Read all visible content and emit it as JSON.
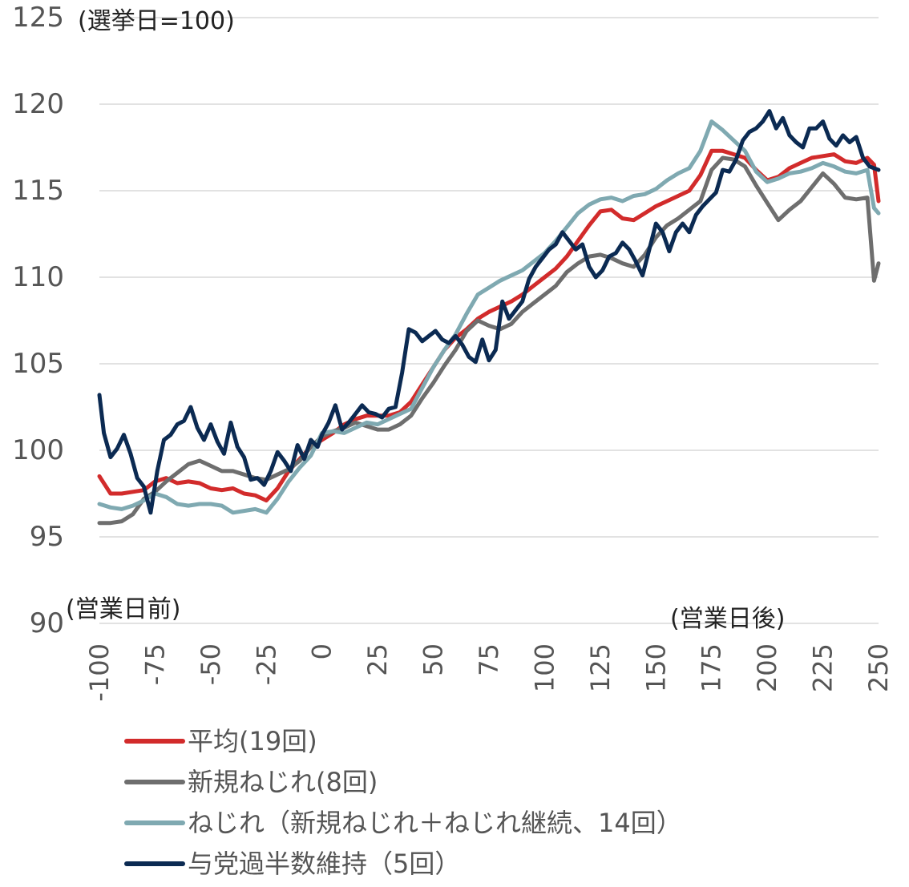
{
  "chart_data": {
    "type": "line",
    "title": "",
    "unit_note": "(選挙日=100)",
    "left_note": "(営業日前)",
    "right_note": "(営業日後)",
    "xlabel": "",
    "ylabel": "",
    "xlim": [
      -100,
      250
    ],
    "ylim": [
      90,
      125
    ],
    "yticks": [
      90,
      95,
      100,
      105,
      110,
      115,
      120,
      125
    ],
    "xticks": [
      -100,
      -75,
      -50,
      -25,
      0,
      25,
      50,
      75,
      100,
      125,
      150,
      175,
      200,
      225,
      250
    ],
    "grid": "horizontal",
    "legend_position": "bottom",
    "series": [
      {
        "name": "平均(19回)",
        "color": "#d22b2b",
        "x": [
          -100,
          -95,
          -90,
          -85,
          -80,
          -75,
          -70,
          -65,
          -60,
          -55,
          -50,
          -45,
          -40,
          -35,
          -30,
          -25,
          -20,
          -15,
          -10,
          -5,
          0,
          5,
          10,
          15,
          20,
          25,
          30,
          35,
          40,
          45,
          50,
          55,
          60,
          65,
          70,
          75,
          80,
          85,
          90,
          95,
          100,
          105,
          110,
          115,
          120,
          125,
          130,
          135,
          140,
          145,
          150,
          155,
          160,
          165,
          170,
          175,
          180,
          185,
          190,
          195,
          200,
          205,
          210,
          215,
          220,
          225,
          230,
          235,
          240,
          245,
          248,
          250
        ],
        "values": [
          98.5,
          97.5,
          97.5,
          97.6,
          97.7,
          98.2,
          98.4,
          98.1,
          98.2,
          98.1,
          97.8,
          97.7,
          97.8,
          97.5,
          97.4,
          97.1,
          97.8,
          98.8,
          99.5,
          100.2,
          100.6,
          101.0,
          101.5,
          101.8,
          102.0,
          102.0,
          102.0,
          102.2,
          102.8,
          103.8,
          104.8,
          105.8,
          106.5,
          107.0,
          107.6,
          108.0,
          108.3,
          108.6,
          109.0,
          109.5,
          110.0,
          110.5,
          111.2,
          112.1,
          113.0,
          113.8,
          113.9,
          113.4,
          113.3,
          113.7,
          114.1,
          114.4,
          114.7,
          115.0,
          115.9,
          117.3,
          117.3,
          117.1,
          116.9,
          116.2,
          115.6,
          115.8,
          116.3,
          116.6,
          116.9,
          117.0,
          117.1,
          116.7,
          116.6,
          116.9,
          116.5,
          114.4
        ]
      },
      {
        "name": "新規ねじれ(8回)",
        "color": "#6e6e6e",
        "x": [
          -100,
          -95,
          -90,
          -85,
          -80,
          -75,
          -70,
          -65,
          -60,
          -55,
          -50,
          -45,
          -40,
          -35,
          -30,
          -25,
          -20,
          -15,
          -10,
          -5,
          0,
          5,
          10,
          15,
          20,
          25,
          30,
          35,
          40,
          45,
          50,
          55,
          60,
          65,
          70,
          75,
          80,
          85,
          90,
          95,
          100,
          105,
          110,
          115,
          120,
          125,
          130,
          135,
          140,
          145,
          150,
          155,
          160,
          165,
          170,
          175,
          180,
          185,
          190,
          195,
          200,
          205,
          210,
          215,
          220,
          225,
          230,
          235,
          240,
          245,
          248,
          250
        ],
        "values": [
          95.8,
          95.8,
          95.9,
          96.3,
          97.2,
          97.6,
          98.2,
          98.7,
          99.2,
          99.4,
          99.1,
          98.8,
          98.8,
          98.6,
          98.4,
          98.3,
          98.6,
          98.9,
          99.4,
          100.2,
          100.8,
          101.1,
          101.3,
          101.6,
          101.4,
          101.2,
          101.2,
          101.5,
          102.0,
          103.0,
          103.9,
          104.9,
          105.8,
          106.9,
          107.5,
          107.2,
          107.0,
          107.3,
          108.0,
          108.5,
          109.0,
          109.5,
          110.3,
          110.8,
          111.2,
          111.3,
          111.1,
          110.8,
          110.6,
          111.3,
          112.3,
          113.0,
          113.4,
          113.9,
          114.4,
          116.2,
          116.9,
          116.8,
          116.4,
          115.3,
          114.3,
          113.3,
          113.9,
          114.4,
          115.2,
          116.0,
          115.4,
          114.6,
          114.5,
          114.6,
          109.8,
          110.8
        ]
      },
      {
        "name": "ねじれ（新規ねじれ＋ねじれ継続、14回）",
        "color": "#7fa9b1",
        "x": [
          -100,
          -95,
          -90,
          -85,
          -80,
          -75,
          -70,
          -65,
          -60,
          -55,
          -50,
          -45,
          -40,
          -35,
          -30,
          -25,
          -20,
          -15,
          -10,
          -5,
          0,
          5,
          10,
          15,
          20,
          25,
          30,
          35,
          40,
          45,
          50,
          55,
          60,
          65,
          70,
          75,
          80,
          85,
          90,
          95,
          100,
          105,
          110,
          115,
          120,
          125,
          130,
          135,
          140,
          145,
          150,
          155,
          160,
          165,
          170,
          175,
          180,
          185,
          190,
          195,
          200,
          205,
          210,
          215,
          220,
          225,
          230,
          235,
          240,
          245,
          248,
          250
        ],
        "values": [
          96.9,
          96.7,
          96.6,
          96.8,
          97.1,
          97.5,
          97.3,
          96.9,
          96.8,
          96.9,
          96.9,
          96.8,
          96.4,
          96.5,
          96.6,
          96.4,
          97.2,
          98.2,
          99.0,
          99.7,
          101.0,
          101.1,
          101.0,
          101.3,
          101.6,
          101.5,
          101.8,
          102.1,
          102.4,
          103.6,
          104.8,
          105.8,
          106.7,
          107.9,
          109.0,
          109.4,
          109.8,
          110.1,
          110.4,
          110.9,
          111.4,
          112.1,
          112.9,
          113.7,
          114.2,
          114.5,
          114.6,
          114.4,
          114.7,
          114.8,
          115.1,
          115.6,
          116.0,
          116.3,
          117.3,
          119.0,
          118.5,
          117.9,
          117.3,
          116.1,
          115.5,
          115.7,
          116.0,
          116.1,
          116.3,
          116.6,
          116.4,
          116.1,
          116.0,
          116.2,
          114.0,
          113.7
        ]
      },
      {
        "name": "与党過半数維持（5回）",
        "color": "#0b2a52",
        "x": [
          -100,
          -98,
          -95,
          -92,
          -89,
          -86,
          -83,
          -80,
          -77,
          -74,
          -71,
          -68,
          -65,
          -62,
          -59,
          -56,
          -53,
          -50,
          -47,
          -44,
          -41,
          -38,
          -35,
          -32,
          -29,
          -26,
          -23,
          -20,
          -17,
          -14,
          -11,
          -8,
          -5,
          -2,
          0,
          3,
          6,
          9,
          12,
          15,
          18,
          21,
          24,
          27,
          30,
          33,
          36,
          39,
          42,
          45,
          48,
          51,
          54,
          57,
          60,
          63,
          66,
          69,
          72,
          75,
          78,
          81,
          84,
          87,
          90,
          93,
          96,
          99,
          102,
          105,
          108,
          111,
          114,
          117,
          120,
          123,
          126,
          129,
          132,
          135,
          138,
          141,
          144,
          147,
          150,
          153,
          156,
          159,
          162,
          165,
          168,
          171,
          174,
          177,
          180,
          183,
          186,
          189,
          192,
          195,
          198,
          201,
          204,
          207,
          210,
          213,
          216,
          219,
          222,
          225,
          228,
          231,
          234,
          237,
          240,
          243,
          246,
          248,
          250
        ],
        "values": [
          103.2,
          101.0,
          99.6,
          100.1,
          100.9,
          99.8,
          98.4,
          97.9,
          96.4,
          98.8,
          100.6,
          100.9,
          101.5,
          101.7,
          102.5,
          101.3,
          100.6,
          101.5,
          100.5,
          99.8,
          101.6,
          100.2,
          99.6,
          98.3,
          98.4,
          98.0,
          98.8,
          99.9,
          99.4,
          98.8,
          100.3,
          99.5,
          100.6,
          100.2,
          100.9,
          101.6,
          102.6,
          101.2,
          101.6,
          102.1,
          102.6,
          102.2,
          102.1,
          101.9,
          102.4,
          102.5,
          104.5,
          107.0,
          106.8,
          106.3,
          106.6,
          106.9,
          106.4,
          106.2,
          106.6,
          106.1,
          105.4,
          105.1,
          106.4,
          105.2,
          105.8,
          108.6,
          107.6,
          108.1,
          108.6,
          109.9,
          110.6,
          111.1,
          111.6,
          111.9,
          112.6,
          112.1,
          111.6,
          111.9,
          110.6,
          110.0,
          110.4,
          111.2,
          111.4,
          112.0,
          111.6,
          110.9,
          110.1,
          111.6,
          113.1,
          112.6,
          111.5,
          112.6,
          113.1,
          112.6,
          113.6,
          114.1,
          114.5,
          114.9,
          116.2,
          116.1,
          116.8,
          117.9,
          118.4,
          118.6,
          119.0,
          119.6,
          118.6,
          119.2,
          118.2,
          117.8,
          117.5,
          118.6,
          118.6,
          119.0,
          118.0,
          117.6,
          118.2,
          117.8,
          118.1,
          116.9,
          116.4,
          116.3,
          116.2
        ]
      }
    ]
  }
}
